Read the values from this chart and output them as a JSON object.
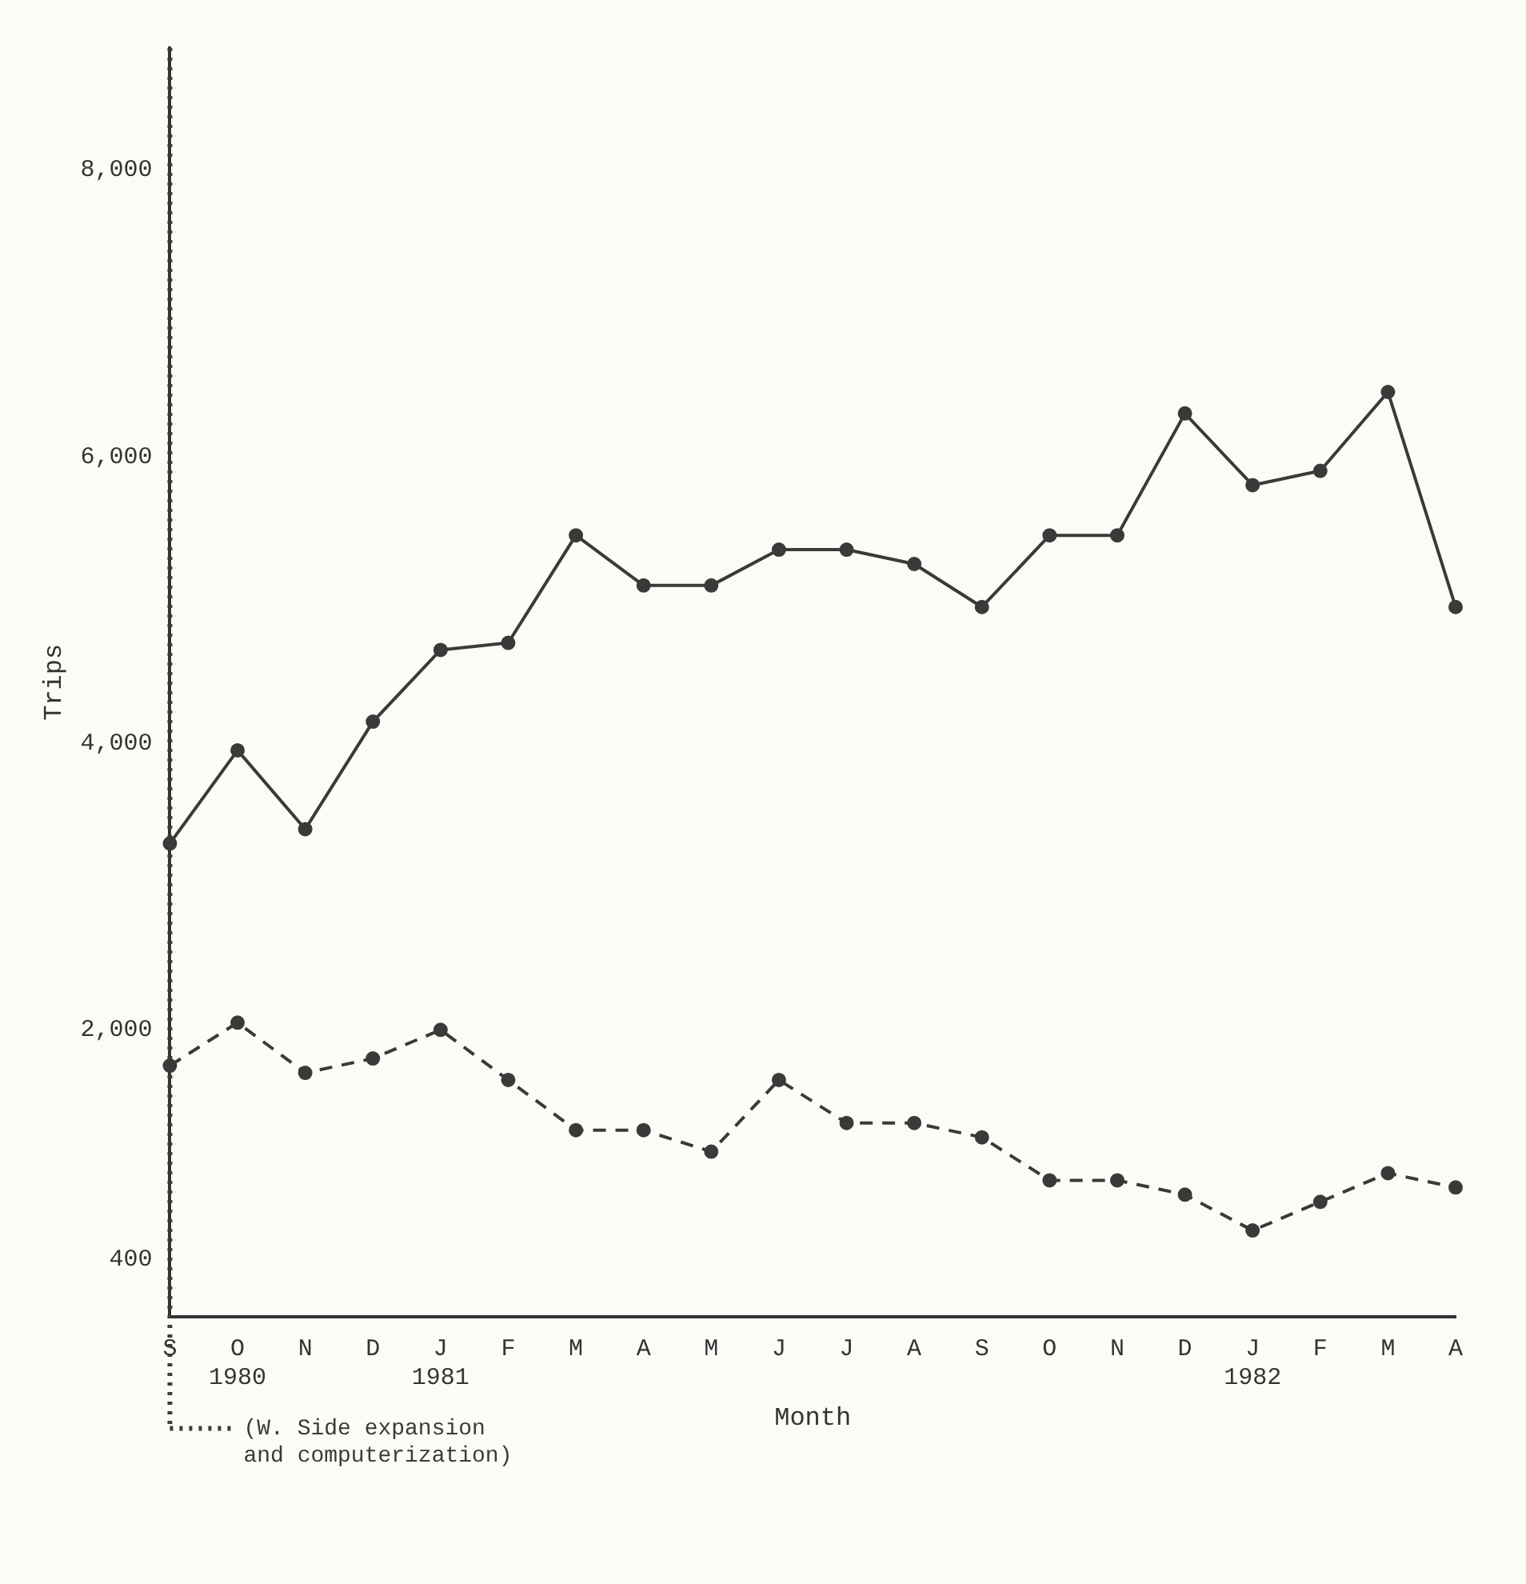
{
  "chart_data": {
    "type": "line",
    "xlabel": "Month",
    "ylabel": "Trips",
    "categories": [
      "S",
      "O\n1980",
      "N",
      "D",
      "J\n1981",
      "F",
      "M",
      "A",
      "M",
      "J",
      "J",
      "A",
      "S",
      "O",
      "N",
      "D",
      "J\n1982",
      "F",
      "M",
      "A"
    ],
    "series": [
      {
        "color": "#3a3a3a",
        "line_style": "solid",
        "values": [
          3300,
          3950,
          3400,
          4150,
          4650,
          4700,
          5450,
          5100,
          5100,
          5350,
          5350,
          5250,
          4950,
          5450,
          5450,
          6300,
          5800,
          5900,
          6450,
          4950
        ]
      },
      {
        "color": "#3a3a3a",
        "line_style": "dashed",
        "values": [
          1750,
          2050,
          1700,
          1800,
          2000,
          1650,
          1300,
          1300,
          1150,
          1650,
          1350,
          1350,
          1250,
          950,
          950,
          850,
          600,
          800,
          1000,
          900
        ]
      }
    ],
    "ylim": [
      0,
      8850
    ],
    "yticks": [
      400,
      {
        "value": 2000,
        "label": "2,000"
      },
      {
        "value": 4000,
        "label": "4,000"
      },
      {
        "value": 6000,
        "label": "6,000"
      },
      {
        "value": 8000,
        "label": "8,000"
      }
    ],
    "ref_lines": [
      {
        "axis": "x",
        "value": "S",
        "label": "(W. Side expansion\nand computerization)",
        "line_style": "dotted",
        "color": "#3a3a3a"
      }
    ],
    "grid": false,
    "legend": false,
    "marker": "circle"
  }
}
